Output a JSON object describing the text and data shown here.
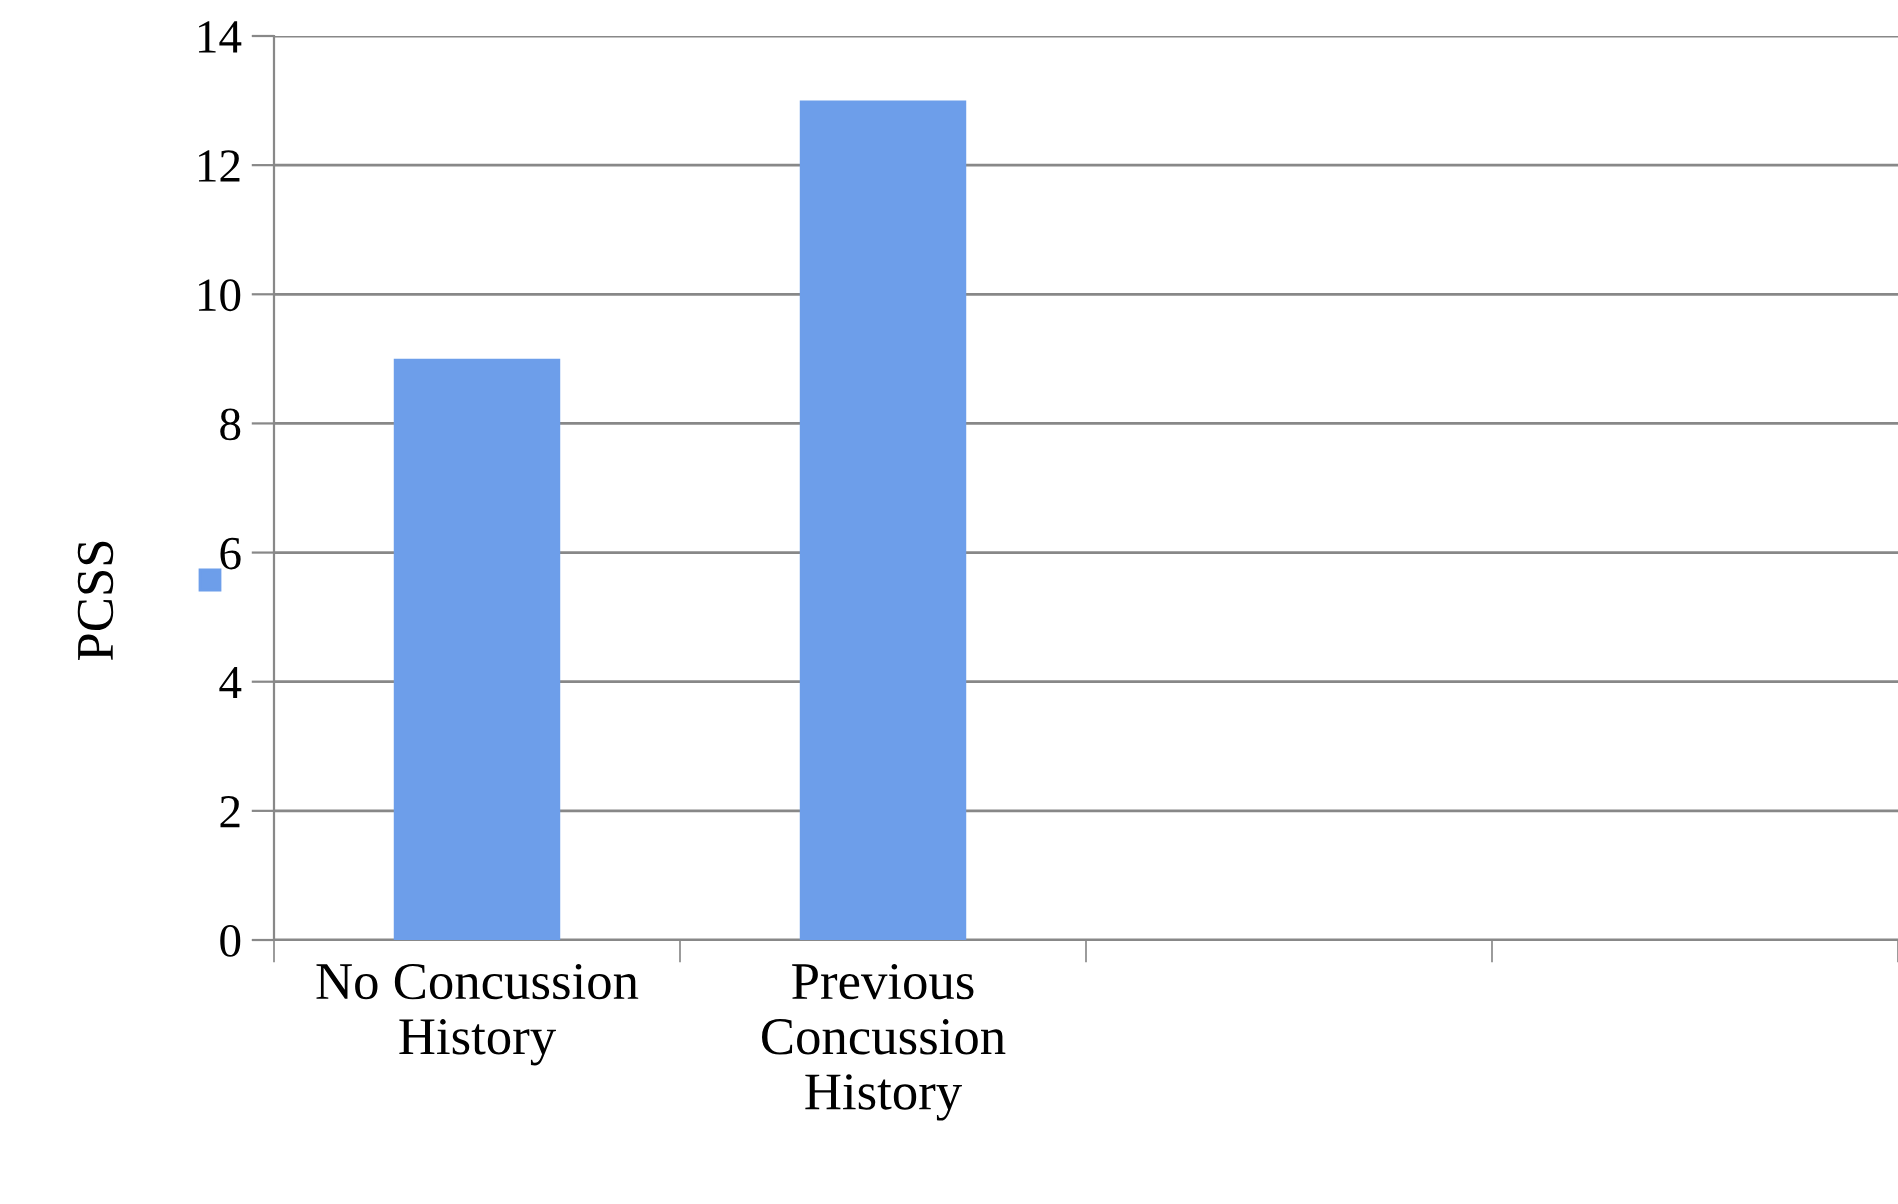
{
  "chart_data": {
    "type": "bar",
    "categories": [
      "No Concussion\nHistory",
      "Previous\nConcussion\nHistory",
      null,
      null
    ],
    "series": [
      {
        "name": "PCSS",
        "color": "#6d9eea",
        "values": [
          9,
          13,
          null,
          null
        ]
      }
    ],
    "ylim": [
      0,
      14
    ],
    "yticks": [
      0,
      2,
      4,
      6,
      8,
      10,
      12,
      14
    ],
    "grid": "y",
    "legend": "left"
  }
}
